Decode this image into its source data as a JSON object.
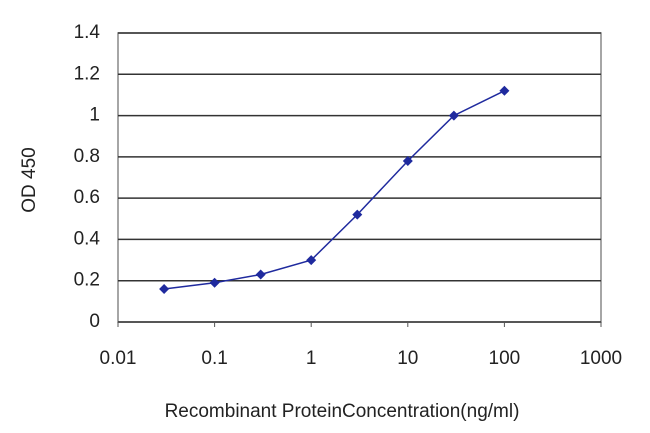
{
  "chart_data": {
    "type": "line",
    "x_label": "Recombinant ProteinConcentration(ng/ml)",
    "y_label": "OD 450",
    "x_scale": "log",
    "xlim": [
      0.01,
      1000
    ],
    "xticks": [
      0.01,
      0.1,
      1,
      10,
      100,
      1000
    ],
    "ylim": [
      0,
      1.4
    ],
    "yticks": [
      0,
      0.2,
      0.4,
      0.6,
      0.8,
      1,
      1.2,
      1.4
    ],
    "grid": true,
    "series": [
      {
        "color": "#1f2a9e",
        "x": [
          0.03,
          0.1,
          0.3,
          1,
          3,
          10,
          30,
          100
        ],
        "values": [
          0.16,
          0.19,
          0.23,
          0.3,
          0.52,
          0.78,
          1.0,
          1.12
        ]
      }
    ]
  }
}
